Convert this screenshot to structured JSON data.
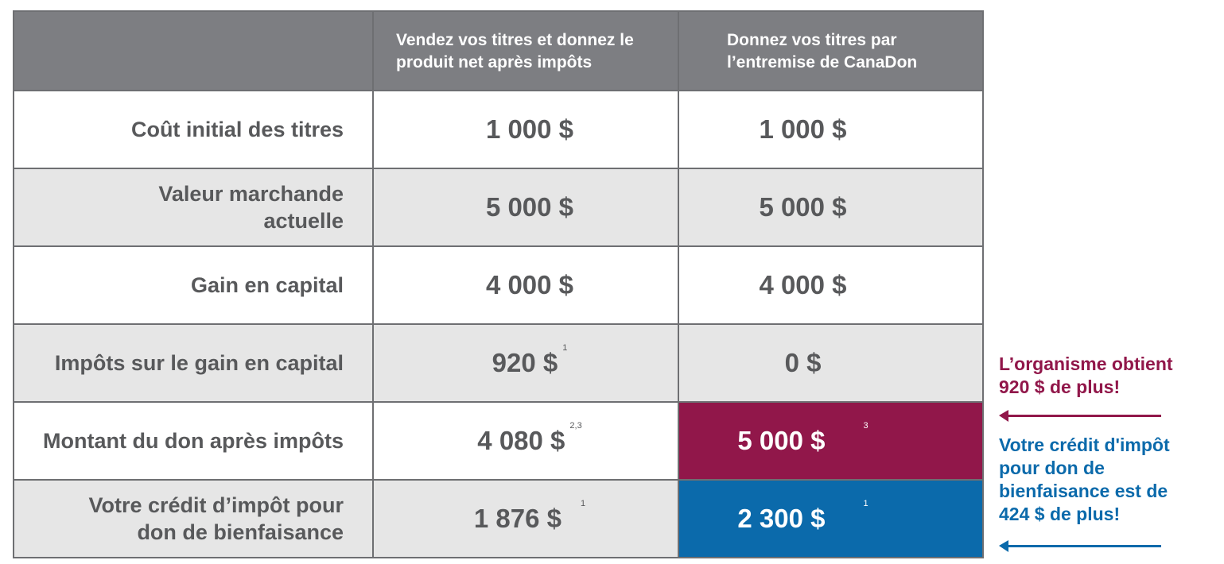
{
  "header": {
    "col1": "",
    "col2_line1": "Vendez vos titres et donnez le",
    "col2_line2": "produit net après impôts",
    "col3_line1": "Donnez vos titres par",
    "col3_line2": "l’entremise de CanaDon"
  },
  "rows": [
    {
      "label_line1": "Coût initial des titres",
      "label_line2": "",
      "sell_value": "1 000 $",
      "sell_note": "",
      "donate_value": "1 000 $",
      "donate_note": ""
    },
    {
      "label_line1": "Valeur marchande",
      "label_line2": "actuelle",
      "sell_value": "5 000 $",
      "sell_note": "",
      "donate_value": "5 000 $",
      "donate_note": ""
    },
    {
      "label_line1": "Gain en capital",
      "label_line2": "",
      "sell_value": "4 000 $",
      "sell_note": "",
      "donate_value": "4 000 $",
      "donate_note": ""
    },
    {
      "label_line1": "Impôts sur le gain en capital",
      "label_line2": "",
      "sell_value": "920 $",
      "sell_note": "1",
      "donate_value": "0 $",
      "donate_note": ""
    },
    {
      "label_line1": "Montant du don après impôts",
      "label_line2": "",
      "sell_value": "4 080 $",
      "sell_note": "2,3",
      "donate_value": "5 000 $",
      "donate_note": "3"
    },
    {
      "label_line1": "Votre crédit d’impôt pour",
      "label_line2": "don de bienfaisance",
      "sell_value": "1 876 $",
      "sell_note": "1",
      "donate_value": "2 300 $",
      "donate_note": "1"
    }
  ],
  "notes": {
    "organization_line1": "L’organisme obtient",
    "organization_line2": "920 $ de plus!",
    "credit_line1": "Votre crédit d'impôt",
    "credit_line2": "pour don de",
    "credit_line3": "bienfaisance est de",
    "credit_line4": "424 $ de plus!"
  },
  "colors": {
    "header_bg": "#7d7e82",
    "alt_row_bg": "#e6e6e6",
    "highlight_red": "#91174a",
    "highlight_blue": "#0b6aab",
    "text_gray": "#58595b"
  },
  "icons": {
    "arrow": "arrow-left-icon"
  }
}
